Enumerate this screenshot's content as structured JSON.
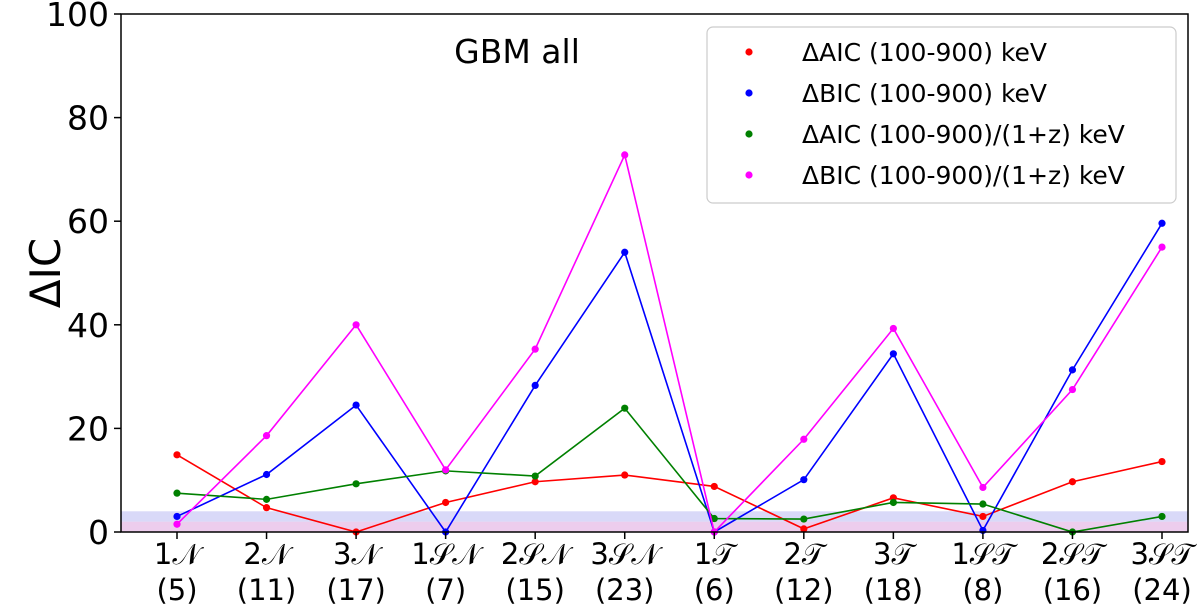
{
  "chart_data": {
    "type": "line",
    "title": "GBM all",
    "xlabel": "",
    "ylabel": "ΔIC",
    "ylim": [
      0,
      100
    ],
    "yticks": [
      "0",
      "20",
      "40",
      "60",
      "80",
      "100"
    ],
    "categories": [
      {
        "name": "1𝒩",
        "count": "(5)"
      },
      {
        "name": "2𝒩",
        "count": "(11)"
      },
      {
        "name": "3𝒩",
        "count": "(17)"
      },
      {
        "name": "1𝒮𝒩",
        "count": "(7)"
      },
      {
        "name": "2𝒮𝒩",
        "count": "(15)"
      },
      {
        "name": "3𝒮𝒩",
        "count": "(23)"
      },
      {
        "name": "1𝒯",
        "count": "(6)"
      },
      {
        "name": "2𝒯",
        "count": "(12)"
      },
      {
        "name": "3𝒯",
        "count": "(18)"
      },
      {
        "name": "1𝒮𝒯",
        "count": "(8)"
      },
      {
        "name": "2𝒮𝒯",
        "count": "(16)"
      },
      {
        "name": "3𝒮𝒯",
        "count": "(24)"
      }
    ],
    "series": [
      {
        "name": "ΔAIC (100-900) keV",
        "color": "#ff0000",
        "values": [
          14.9,
          4.7,
          0.0,
          5.7,
          9.7,
          11.0,
          8.8,
          0.6,
          6.6,
          3.0,
          9.7,
          13.6
        ]
      },
      {
        "name": "ΔBIC (100-900) keV",
        "color": "#0000ff",
        "values": [
          3.0,
          11.1,
          24.5,
          0.0,
          28.3,
          54.0,
          0.0,
          10.1,
          34.4,
          0.3,
          31.3,
          59.6
        ]
      },
      {
        "name": "ΔAIC (100-900)/(1+z) keV",
        "color": "#008000",
        "values": [
          7.5,
          6.3,
          9.3,
          11.8,
          10.8,
          23.9,
          2.6,
          2.5,
          5.7,
          5.4,
          0.0,
          3.0
        ]
      },
      {
        "name": "ΔBIC (100-900)/(1+z) keV",
        "color": "#ff00ff",
        "values": [
          1.5,
          18.6,
          40.0,
          12.0,
          35.3,
          72.8,
          0.0,
          17.9,
          39.3,
          8.6,
          27.5,
          55.0
        ]
      }
    ],
    "bands": [
      {
        "from": 0,
        "to": 2,
        "color": "#e6b8e6"
      },
      {
        "from": 2,
        "to": 4,
        "color": "#c9c9f5"
      }
    ],
    "legend_position": "top-right",
    "grid": false
  }
}
